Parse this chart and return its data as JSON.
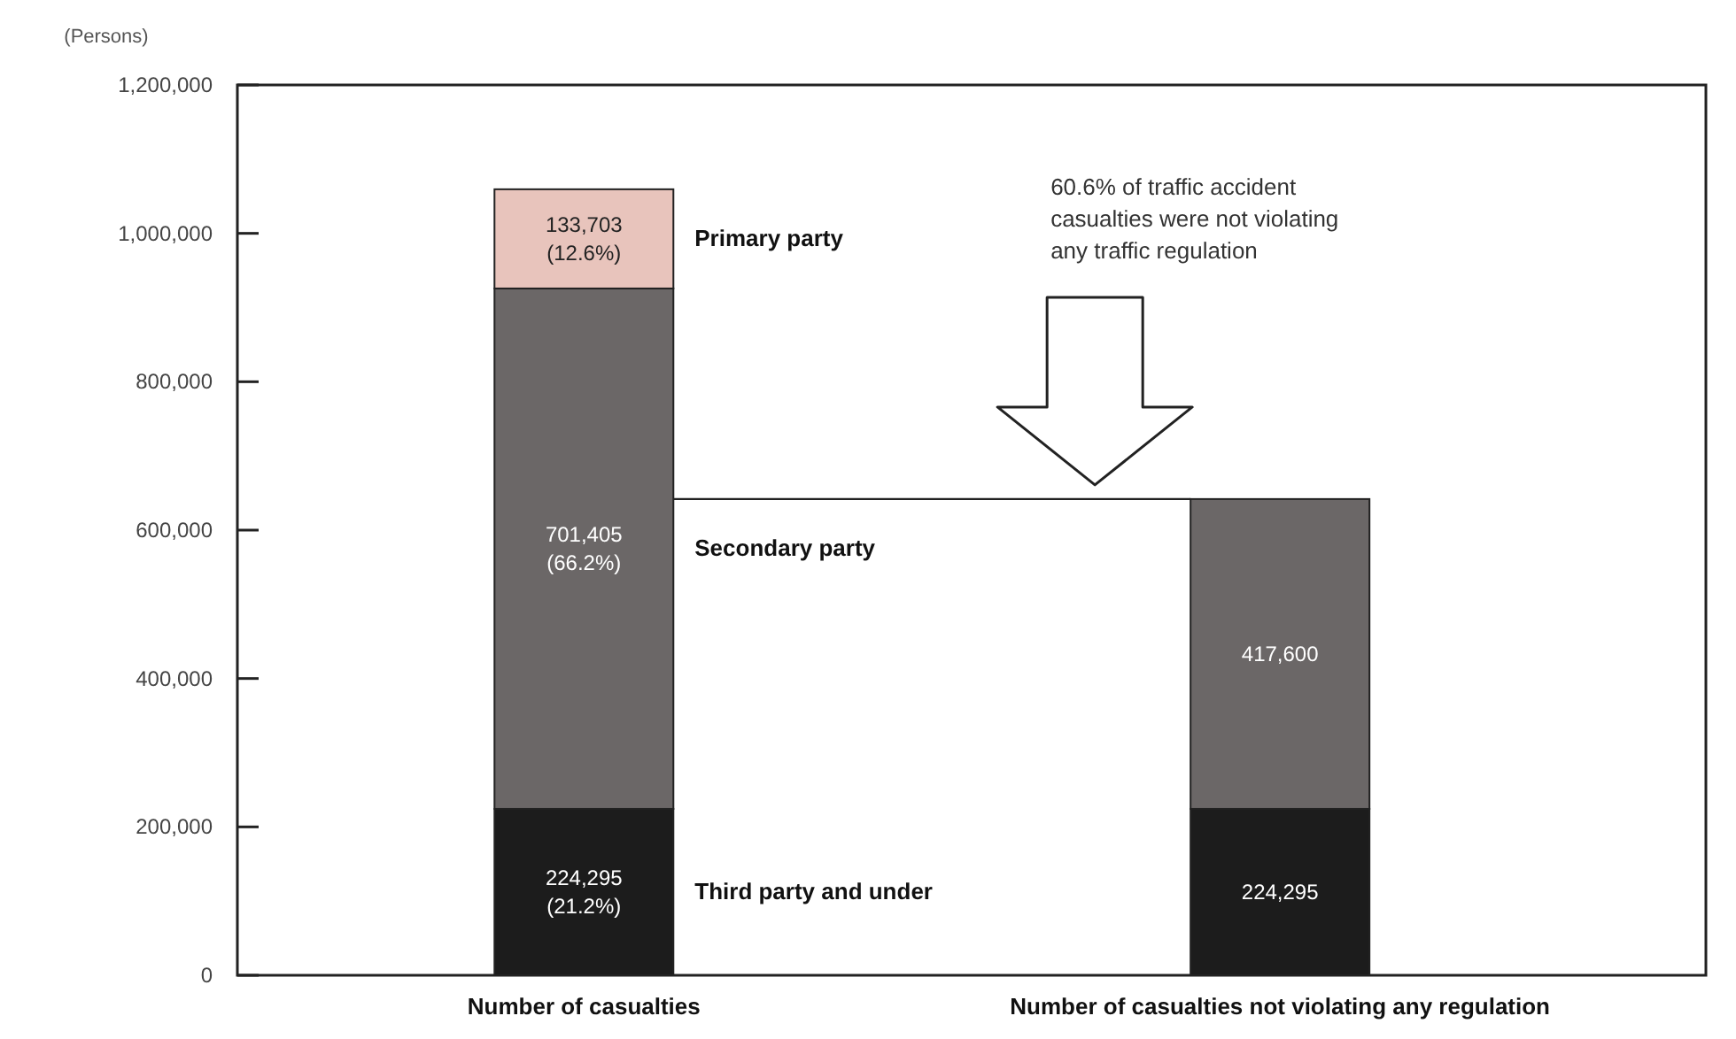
{
  "chart_data": {
    "type": "bar",
    "stacked": true,
    "ylabel": "(Persons)",
    "categories": [
      "Number of casualties",
      "Number of casualties not violating any regulation"
    ],
    "series": [
      {
        "name": "Third party and under",
        "color": "#1c1c1c",
        "values": [
          224295,
          224295
        ],
        "value_labels": [
          "224,295\n(21.2%)",
          "224,295"
        ]
      },
      {
        "name": "Secondary party",
        "color": "#6b6767",
        "values": [
          701405,
          417600
        ],
        "value_labels": [
          "701,405\n(66.2%)",
          "417,600"
        ]
      },
      {
        "name": "Primary party",
        "color": "#e8c4bc",
        "values": [
          133703,
          null
        ],
        "value_labels": [
          "133,703\n(12.6%)",
          null
        ]
      }
    ],
    "ylim": [
      0,
      1200000
    ],
    "yticks": [
      0,
      {
        "value": 200000,
        "label": "200,000"
      },
      {
        "value": 400000,
        "label": "400,000"
      },
      {
        "value": 600000,
        "label": "600,000"
      },
      {
        "value": 800000,
        "label": "800,000"
      },
      {
        "value": 1000000,
        "label": "1,000,000"
      },
      {
        "value": 1200000,
        "label": "1,200,000"
      }
    ],
    "annotations": [
      "60.6% of traffic accident casualties were not violating any traffic regulation"
    ]
  }
}
